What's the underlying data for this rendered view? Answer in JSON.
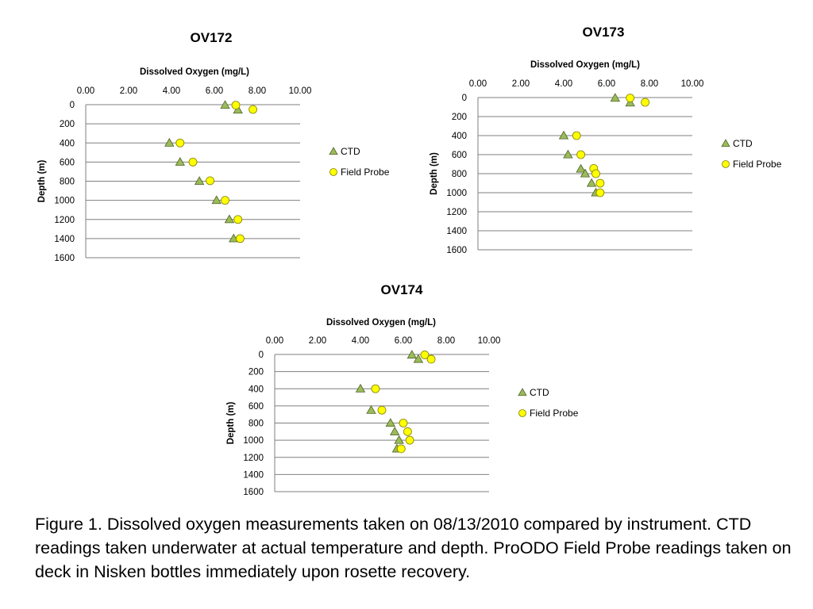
{
  "caption": "Figure 1. Dissolved oxygen measurements taken on 08/13/2010 compared by instrument. CTD readings taken underwater at actual temperature and depth.  ProODO Field Probe readings taken on deck in Nisken bottles immediately upon rosette recovery.",
  "colors": {
    "ctd": "#9bbb59",
    "ctd_stroke": "#4f6228",
    "probe": "#ffff00",
    "probe_stroke": "#7f7f00",
    "grid": "#7f7f7f"
  },
  "chart_data": [
    {
      "type": "scatter",
      "title": "OV172",
      "xlabel": "Dissolved Oxygen (mg/L)",
      "ylabel": "Depth (m)",
      "xlim": [
        0,
        10
      ],
      "ylim": [
        0,
        1600
      ],
      "x_ticks": [
        "0.00",
        "2.00",
        "4.00",
        "6.00",
        "8.00",
        "10.00"
      ],
      "y_ticks": [
        "0",
        "200",
        "400",
        "600",
        "800",
        "1000",
        "1200",
        "1400",
        "1600"
      ],
      "x_axis_position": "top",
      "y_axis_reversed": true,
      "grid": "horizontal",
      "legend_position": "right",
      "series": [
        {
          "name": "CTD",
          "marker": "triangle",
          "points": [
            [
              6.5,
              5
            ],
            [
              7.1,
              55
            ],
            [
              3.9,
              400
            ],
            [
              4.4,
              600
            ],
            [
              5.3,
              800
            ],
            [
              6.1,
              1000
            ],
            [
              6.7,
              1200
            ],
            [
              6.9,
              1400
            ]
          ]
        },
        {
          "name": "Field Probe",
          "marker": "circle",
          "points": [
            [
              7.0,
              5
            ],
            [
              7.8,
              50
            ],
            [
              4.4,
              400
            ],
            [
              5.0,
              600
            ],
            [
              5.8,
              795
            ],
            [
              6.5,
              1000
            ],
            [
              7.1,
              1200
            ],
            [
              7.2,
              1400
            ]
          ]
        }
      ]
    },
    {
      "type": "scatter",
      "title": "OV173",
      "xlabel": "Dissolved Oxygen (mg/L)",
      "ylabel": "Depth (m)",
      "xlim": [
        0,
        10
      ],
      "ylim": [
        0,
        1600
      ],
      "x_ticks": [
        "0.00",
        "2.00",
        "4.00",
        "6.00",
        "8.00",
        "10.00"
      ],
      "y_ticks": [
        "0",
        "200",
        "400",
        "600",
        "800",
        "1000",
        "1200",
        "1400",
        "1600"
      ],
      "x_axis_position": "top",
      "y_axis_reversed": true,
      "grid": "horizontal",
      "legend_position": "right",
      "series": [
        {
          "name": "CTD",
          "marker": "triangle",
          "points": [
            [
              6.4,
              5
            ],
            [
              7.1,
              55
            ],
            [
              4.0,
              400
            ],
            [
              4.2,
              600
            ],
            [
              4.8,
              750
            ],
            [
              5.0,
              800
            ],
            [
              5.3,
              900
            ],
            [
              5.5,
              1000
            ]
          ]
        },
        {
          "name": "Field Probe",
          "marker": "circle",
          "points": [
            [
              7.1,
              5
            ],
            [
              7.8,
              50
            ],
            [
              4.6,
              400
            ],
            [
              4.8,
              600
            ],
            [
              5.4,
              745
            ],
            [
              5.5,
              800
            ],
            [
              5.7,
              900
            ],
            [
              5.7,
              1000
            ]
          ]
        }
      ]
    },
    {
      "type": "scatter",
      "title": "OV174",
      "xlabel": "Dissolved Oxygen (mg/L)",
      "ylabel": "Depth (m)",
      "xlim": [
        0,
        10
      ],
      "ylim": [
        0,
        1600
      ],
      "x_ticks": [
        "0.00",
        "2.00",
        "4.00",
        "6.00",
        "8.00",
        "10.00"
      ],
      "y_ticks": [
        "0",
        "200",
        "400",
        "600",
        "800",
        "1000",
        "1200",
        "1400",
        "1600"
      ],
      "x_axis_position": "top",
      "y_axis_reversed": true,
      "grid": "horizontal",
      "legend_position": "right",
      "series": [
        {
          "name": "CTD",
          "marker": "triangle",
          "points": [
            [
              6.4,
              5
            ],
            [
              6.7,
              55
            ],
            [
              4.0,
              400
            ],
            [
              4.5,
              650
            ],
            [
              5.4,
              800
            ],
            [
              5.6,
              900
            ],
            [
              5.8,
              1000
            ],
            [
              5.7,
              1100
            ]
          ]
        },
        {
          "name": "Field Probe",
          "marker": "circle",
          "points": [
            [
              7.0,
              5
            ],
            [
              7.3,
              55
            ],
            [
              4.7,
              400
            ],
            [
              5.0,
              650
            ],
            [
              6.0,
              800
            ],
            [
              6.2,
              900
            ],
            [
              6.3,
              1000
            ],
            [
              5.9,
              1100
            ]
          ]
        }
      ]
    }
  ]
}
